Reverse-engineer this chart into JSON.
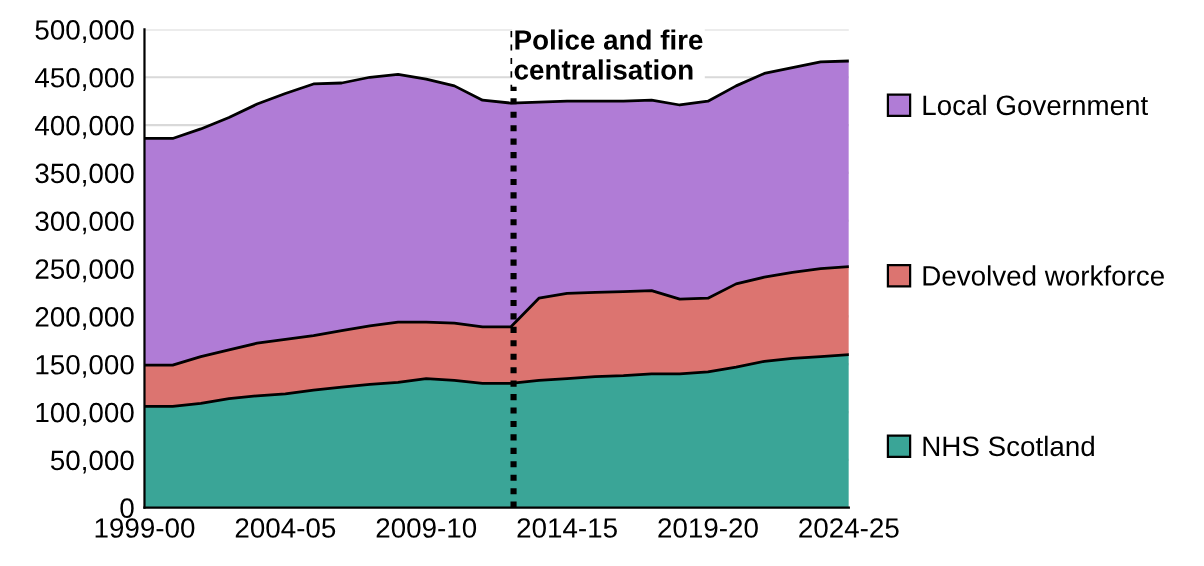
{
  "chart_data": {
    "type": "area",
    "stacked": true,
    "categories": [
      "1999-00",
      null,
      null,
      null,
      null,
      "2004-05",
      null,
      null,
      null,
      null,
      "2009-10",
      null,
      null,
      null,
      null,
      "2014-15",
      null,
      null,
      null,
      null,
      "2019-20",
      null,
      null,
      null,
      null,
      "2024-25"
    ],
    "series": [
      {
        "name": "NHS Scotland",
        "color": "#3aa597",
        "values": [
          106000,
          106000,
          109000,
          114000,
          117000,
          119000,
          123000,
          126000,
          129000,
          131000,
          135000,
          133000,
          130000,
          130000,
          133000,
          135000,
          137000,
          138000,
          140000,
          140000,
          142000,
          147000,
          153000,
          156000,
          158000,
          160000
        ]
      },
      {
        "name": "Devolved workforce",
        "color": "#dc7470",
        "values": [
          43000,
          43000,
          49000,
          51000,
          55000,
          57000,
          57000,
          59000,
          61000,
          63000,
          59000,
          60000,
          59000,
          59000,
          86000,
          89000,
          88000,
          88000,
          87000,
          78000,
          77000,
          87000,
          88000,
          90000,
          92000,
          92000
        ]
      },
      {
        "name": "Local Government",
        "color": "#b07cd6",
        "values": [
          237000,
          237000,
          238000,
          243000,
          250000,
          257000,
          263000,
          259000,
          260000,
          259000,
          254000,
          248000,
          237000,
          234000,
          205000,
          201000,
          200000,
          199000,
          199000,
          203000,
          206000,
          207000,
          213000,
          214000,
          216000,
          215000
        ]
      }
    ],
    "ylim": [
      0,
      500000
    ],
    "yticks": [
      {
        "value": 0,
        "label": "0"
      },
      {
        "value": 50000,
        "label": "50,000"
      },
      {
        "value": 100000,
        "label": "100,000"
      },
      {
        "value": 150000,
        "label": "150,000"
      },
      {
        "value": 200000,
        "label": "200,000"
      },
      {
        "value": 250000,
        "label": "250,000"
      },
      {
        "value": 300000,
        "label": "300,000"
      },
      {
        "value": 350000,
        "label": "350,000"
      },
      {
        "value": 400000,
        "label": "400,000"
      },
      {
        "value": 450000,
        "label": "450,000"
      },
      {
        "value": 500000,
        "label": "500,000"
      }
    ],
    "annotations": [
      "Police and fire\ncentralisation"
    ],
    "grid": "y",
    "legend": "right"
  }
}
